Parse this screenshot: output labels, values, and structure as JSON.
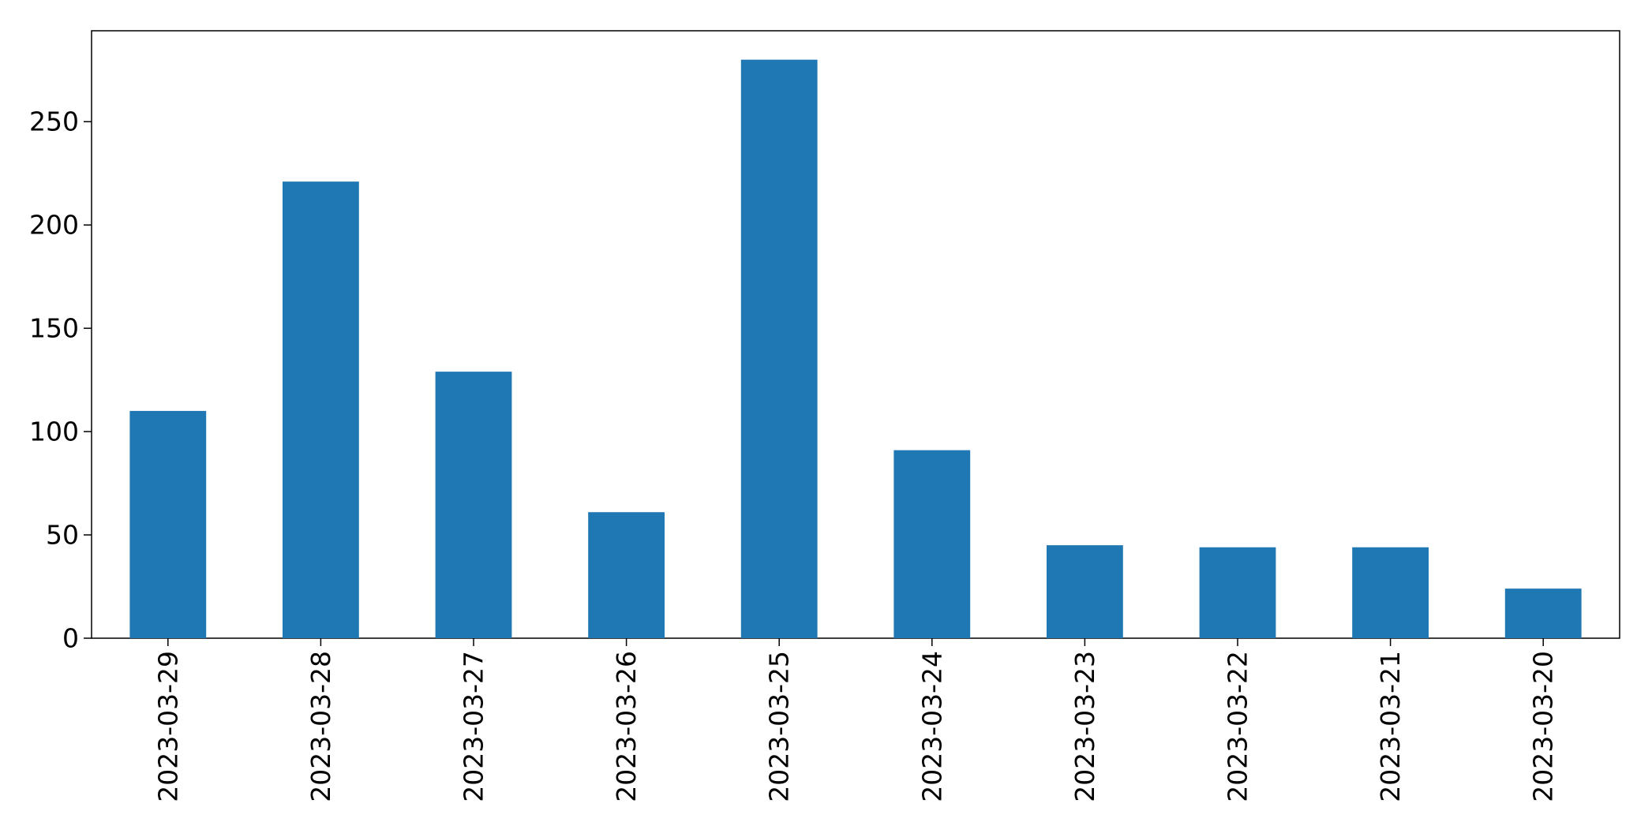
{
  "chart_data": {
    "type": "bar",
    "title": "",
    "xlabel": "",
    "ylabel": "",
    "categories": [
      "2023-03-29",
      "2023-03-28",
      "2023-03-27",
      "2023-03-26",
      "2023-03-25",
      "2023-03-24",
      "2023-03-23",
      "2023-03-22",
      "2023-03-21",
      "2023-03-20"
    ],
    "values": [
      110,
      221,
      129,
      61,
      280,
      91,
      45,
      44,
      44,
      24
    ],
    "ylim": [
      0,
      294
    ],
    "yticks": [
      0,
      50,
      100,
      150,
      200,
      250
    ],
    "bar_color": "#1f77b4",
    "grid": false,
    "legend": "none"
  }
}
